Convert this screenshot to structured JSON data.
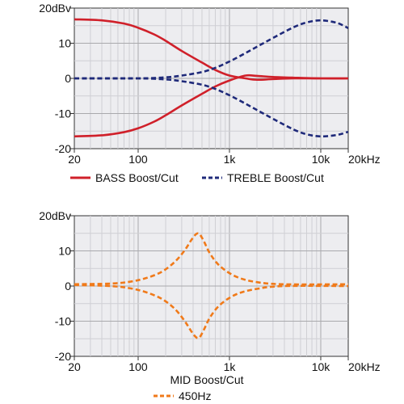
{
  "chart_data": [
    {
      "type": "line",
      "x_scale": "log",
      "xlim": [
        20,
        20000
      ],
      "ylim": [
        -20,
        20
      ],
      "unit_y": "dBv",
      "x_tick_labels": [
        "20",
        "100",
        "1k",
        "10k",
        "20kHz"
      ],
      "x_tick_values": [
        20,
        100,
        1000,
        10000,
        20000
      ],
      "y_tick_labels": [
        "20dBv",
        "10",
        "0",
        "-10",
        "-20"
      ],
      "y_tick_values": [
        20,
        10,
        0,
        -10,
        -20
      ],
      "grid": true,
      "legend_position": "bottom",
      "legend": [
        {
          "label": "BASS Boost/Cut",
          "color": "#d0202a",
          "style": "solid"
        },
        {
          "label": "TREBLE Boost/Cut",
          "color": "#1f2a7a",
          "style": "dashed"
        }
      ],
      "series": [
        {
          "name": "BASS Boost/Cut",
          "color": "#d0202a",
          "style": "solid",
          "x": [
            20,
            40,
            70,
            100,
            150,
            200,
            300,
            500,
            700,
            1000,
            1500,
            2000,
            3000,
            5000,
            10000,
            20000
          ],
          "y": [
            16.8,
            16.5,
            15.6,
            14.4,
            12.5,
            10.7,
            7.8,
            4.5,
            2.4,
            0.8,
            0.0,
            -0.4,
            -0.2,
            0.0,
            0.0,
            0.0
          ]
        },
        {
          "name": "BASS Boost/Cut",
          "color": "#d0202a",
          "style": "solid",
          "x": [
            20,
            40,
            70,
            100,
            150,
            200,
            300,
            500,
            700,
            1000,
            1500,
            2000,
            3000,
            5000,
            10000,
            20000
          ],
          "y": [
            -16.5,
            -16.2,
            -15.3,
            -14.2,
            -12.3,
            -10.5,
            -7.7,
            -4.4,
            -2.3,
            -0.6,
            0.8,
            0.7,
            0.4,
            0.2,
            0.0,
            0.0
          ]
        },
        {
          "name": "TREBLE Boost/Cut",
          "color": "#1f2a7a",
          "style": "dashed",
          "x": [
            20,
            100,
            200,
            300,
            500,
            700,
            1000,
            1500,
            2000,
            3000,
            5000,
            7000,
            10000,
            15000,
            20000
          ],
          "y": [
            0.0,
            0.0,
            0.3,
            0.8,
            1.8,
            3.0,
            4.8,
            7.2,
            9.0,
            11.5,
            14.5,
            15.9,
            16.5,
            15.8,
            14.3
          ]
        },
        {
          "name": "TREBLE Boost/Cut",
          "color": "#1f2a7a",
          "style": "dashed",
          "x": [
            20,
            100,
            200,
            300,
            500,
            700,
            1000,
            1500,
            2000,
            3000,
            5000,
            7000,
            10000,
            15000,
            20000
          ],
          "y": [
            0.0,
            0.0,
            -0.3,
            -0.8,
            -1.8,
            -3.0,
            -4.8,
            -7.2,
            -9.0,
            -11.5,
            -14.5,
            -15.9,
            -16.5,
            -16.1,
            -15.2
          ]
        }
      ]
    },
    {
      "type": "line",
      "x_scale": "log",
      "xlim": [
        20,
        20000
      ],
      "ylim": [
        -20,
        20
      ],
      "unit_y": "dBv",
      "x_tick_labels": [
        "20",
        "100",
        "1k",
        "10k",
        "20kHz"
      ],
      "x_tick_values": [
        20,
        100,
        1000,
        10000,
        20000
      ],
      "y_tick_labels": [
        "20dBv",
        "10",
        "0",
        "-10",
        "-20"
      ],
      "y_tick_values": [
        20,
        10,
        0,
        -10,
        -20
      ],
      "grid": true,
      "legend_position": "bottom",
      "legend_title": "MID Boost/Cut",
      "legend": [
        {
          "label": "450Hz",
          "color": "#f07a1a",
          "style": "dashed"
        }
      ],
      "series": [
        {
          "name": "450Hz",
          "color": "#f07a1a",
          "style": "dashed",
          "x": [
            20,
            50,
            80,
            120,
            180,
            250,
            320,
            380,
            420,
            450,
            480,
            530,
            620,
            800,
            1200,
            2000,
            4000,
            20000
          ],
          "y": [
            0.5,
            0.7,
            1.2,
            2.2,
            4.0,
            6.8,
            10.0,
            13.0,
            14.5,
            15.0,
            14.5,
            12.5,
            9.0,
            5.5,
            2.6,
            1.1,
            0.5,
            0.5
          ]
        },
        {
          "name": "450Hz",
          "color": "#f07a1a",
          "style": "dashed",
          "x": [
            20,
            50,
            80,
            120,
            180,
            250,
            320,
            380,
            420,
            450,
            480,
            530,
            620,
            800,
            1200,
            2000,
            4000,
            20000
          ],
          "y": [
            0.3,
            0.0,
            -0.6,
            -1.7,
            -3.6,
            -6.4,
            -9.8,
            -12.8,
            -14.3,
            -14.8,
            -14.3,
            -12.2,
            -8.7,
            -5.2,
            -2.3,
            -0.8,
            0.0,
            0.0
          ]
        }
      ]
    }
  ]
}
